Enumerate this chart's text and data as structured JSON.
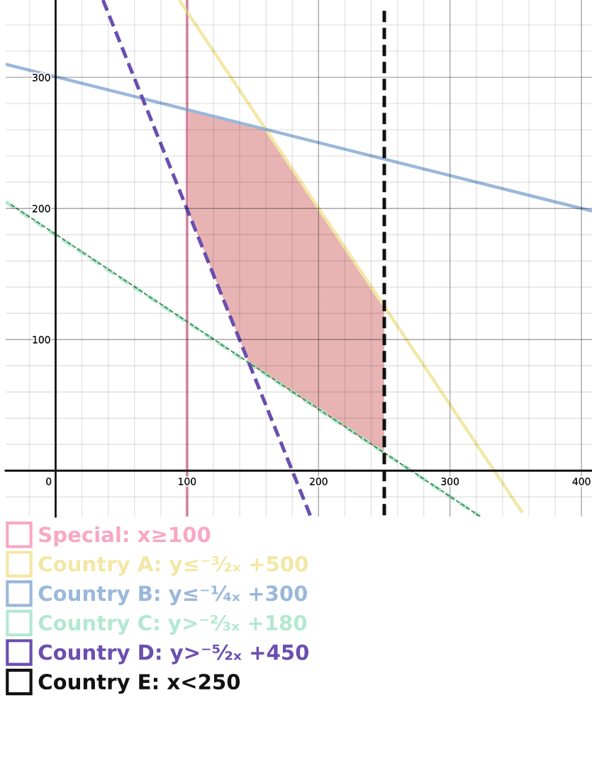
{
  "chart_data": {
    "type": "line",
    "xlim": [
      -38,
      408
    ],
    "ylim": [
      -35,
      359
    ],
    "xticks": [
      0,
      100,
      200,
      300,
      400
    ],
    "yticks": [
      100,
      200,
      300
    ],
    "grid": true,
    "legend": "bottom left",
    "series": [
      {
        "type": "area",
        "color": "#e8b4b3",
        "x": [
          100,
          147,
          160,
          250
        ],
        "values": [
          null,
          null,
          null,
          null
        ],
        "lower": [
          200,
          82,
          73,
          13
        ],
        "upper": [
          275,
          263,
          260,
          125
        ]
      },
      {
        "name": "Special: x≥100",
        "color": "#f7a8c4",
        "line_style": "solid",
        "x": [
          100,
          100
        ],
        "values": [
          -35,
          359
        ]
      },
      {
        "name": "Country A: y≤⁻³⁄₂ₓ +500",
        "color": "#f3e7a6",
        "line_style": "solid",
        "x": [
          94,
          355
        ],
        "values": [
          359,
          -32
        ]
      },
      {
        "name": "Country B: y≤⁻¹⁄₄ₓ +300",
        "color": "#9ab8da",
        "line_style": "solid",
        "x": [
          -38,
          408
        ],
        "values": [
          310,
          198
        ]
      },
      {
        "name": "Country C: y>⁻²⁄₃ₓ +180",
        "color": "#b3e8d2",
        "line_style": "dashed",
        "x": [
          -38,
          323
        ],
        "values": [
          205,
          -35
        ]
      },
      {
        "color": "#3d8c46",
        "line_style": "dashed",
        "x": [
          -34,
          323
        ],
        "values": [
          203,
          -35
        ]
      },
      {
        "name": "Country D: y>⁻⁵⁄₂ₓ +450",
        "color": "#6a4fb0",
        "line_style": "dashed",
        "x": [
          36,
          194
        ],
        "values": [
          359,
          -35
        ]
      },
      {
        "name": "Country E: x<250",
        "color": "#111111",
        "line_style": "dashed",
        "x": [
          250,
          250
        ],
        "values": [
          -34,
          354
        ]
      }
    ]
  }
}
